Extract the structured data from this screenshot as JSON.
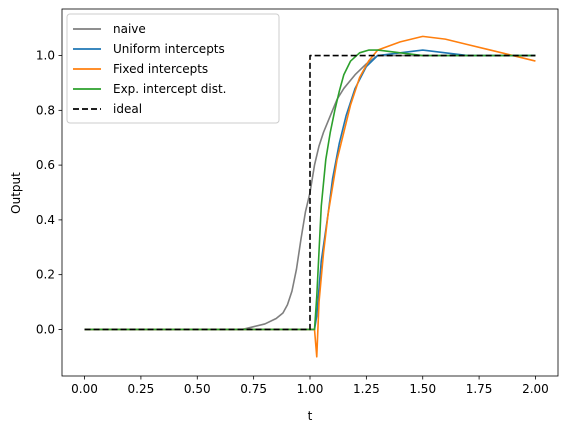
{
  "chart_data": {
    "type": "line",
    "title": "",
    "xlabel": "t",
    "ylabel": "Output",
    "xlim": [
      -0.1,
      2.1
    ],
    "ylim": [
      -0.17,
      1.17
    ],
    "xticks": [
      0.0,
      0.25,
      0.5,
      0.75,
      1.0,
      1.25,
      1.5,
      1.75,
      2.0
    ],
    "xtick_labels": [
      "0.00",
      "0.25",
      "0.50",
      "0.75",
      "1.00",
      "1.25",
      "1.50",
      "1.75",
      "2.00"
    ],
    "yticks": [
      0.0,
      0.2,
      0.4,
      0.6,
      0.8,
      1.0
    ],
    "ytick_labels": [
      "0.0",
      "0.2",
      "0.4",
      "0.6",
      "0.8",
      "1.0"
    ],
    "grid": false,
    "legend": {
      "position": "top-left"
    },
    "series": [
      {
        "name": "naive",
        "color": "#7f7f7f",
        "style": "solid",
        "x": [
          0.0,
          0.1,
          0.2,
          0.3,
          0.4,
          0.5,
          0.6,
          0.7,
          0.75,
          0.8,
          0.85,
          0.88,
          0.9,
          0.92,
          0.94,
          0.96,
          0.98,
          1.0,
          1.02,
          1.04,
          1.06,
          1.08,
          1.1,
          1.12,
          1.15,
          1.2,
          1.25,
          1.3,
          1.4,
          1.5,
          1.6,
          1.7,
          1.8,
          1.9,
          2.0
        ],
        "y": [
          0.0,
          0.0,
          0.0,
          0.0,
          0.0,
          0.0,
          0.0,
          0.0,
          0.01,
          0.02,
          0.04,
          0.06,
          0.09,
          0.14,
          0.22,
          0.33,
          0.43,
          0.5,
          0.6,
          0.67,
          0.72,
          0.76,
          0.8,
          0.84,
          0.88,
          0.93,
          0.97,
          1.0,
          1.0,
          1.0,
          1.0,
          1.0,
          1.0,
          1.0,
          1.0
        ]
      },
      {
        "name": "Uniform intercepts",
        "color": "#1f77b4",
        "style": "solid",
        "x": [
          0.0,
          0.5,
          1.0,
          1.02,
          1.03,
          1.05,
          1.08,
          1.1,
          1.13,
          1.16,
          1.2,
          1.25,
          1.3,
          1.4,
          1.5,
          1.6,
          1.7,
          1.8,
          1.9,
          2.0
        ],
        "y": [
          0.0,
          0.0,
          0.0,
          0.0,
          0.05,
          0.25,
          0.42,
          0.55,
          0.68,
          0.78,
          0.88,
          0.96,
          1.0,
          1.01,
          1.02,
          1.01,
          1.0,
          1.0,
          1.0,
          1.0
        ]
      },
      {
        "name": "Fixed intercepts",
        "color": "#ff7f0e",
        "style": "solid",
        "x": [
          0.0,
          0.5,
          1.0,
          1.02,
          1.03,
          1.04,
          1.06,
          1.08,
          1.1,
          1.12,
          1.15,
          1.18,
          1.22,
          1.26,
          1.3,
          1.4,
          1.5,
          1.6,
          1.7,
          1.8,
          1.9,
          2.0
        ],
        "y": [
          0.0,
          0.0,
          0.0,
          0.0,
          -0.1,
          0.1,
          0.28,
          0.42,
          0.52,
          0.62,
          0.72,
          0.82,
          0.92,
          0.98,
          1.02,
          1.05,
          1.07,
          1.06,
          1.04,
          1.02,
          1.0,
          0.98
        ]
      },
      {
        "name": "Exp. intercept dist.",
        "color": "#2ca02c",
        "style": "solid",
        "x": [
          0.0,
          0.5,
          1.0,
          1.02,
          1.03,
          1.05,
          1.07,
          1.09,
          1.11,
          1.13,
          1.15,
          1.18,
          1.22,
          1.26,
          1.3,
          1.4,
          1.5,
          1.6,
          1.7,
          1.8,
          1.9,
          2.0
        ],
        "y": [
          0.0,
          0.0,
          0.0,
          0.0,
          0.12,
          0.45,
          0.62,
          0.72,
          0.8,
          0.87,
          0.93,
          0.98,
          1.01,
          1.02,
          1.02,
          1.01,
          1.0,
          1.0,
          1.0,
          1.0,
          1.0,
          1.0
        ]
      },
      {
        "name": "ideal",
        "color": "#000000",
        "style": "dashed",
        "x": [
          0.0,
          1.0,
          1.0,
          2.0
        ],
        "y": [
          0.0,
          0.0,
          1.0,
          1.0
        ]
      }
    ]
  }
}
